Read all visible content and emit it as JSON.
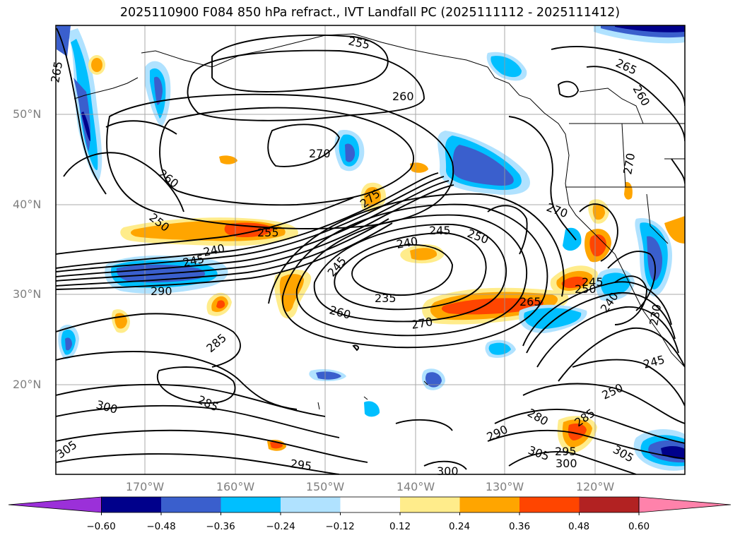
{
  "title": "2025110900 F084 850 hPa refract., IVT Landfall PC (2025111112 - 2025111412)",
  "lat_labels": [
    "50°N",
    "40°N",
    "30°N",
    "20°N"
  ],
  "lon_labels": [
    "170°W",
    "160°W",
    "150°W",
    "140°W",
    "130°W",
    "120°W"
  ],
  "contour_labels": [
    "255",
    "260",
    "265",
    "265",
    "260",
    "270",
    "270",
    "270",
    "260",
    "250",
    "275",
    "255",
    "240",
    "245",
    "245",
    "250",
    "240",
    "245",
    "290",
    "235",
    "260",
    "270",
    "265",
    "250",
    "245",
    "240",
    "230",
    "285",
    "285",
    "300",
    "305",
    "295",
    "300",
    "280",
    "290",
    "285",
    "305",
    "295",
    "300",
    "305",
    "250",
    "245"
  ],
  "colorbar": {
    "ticks": [
      "−0.60",
      "−0.48",
      "−0.36",
      "−0.24",
      "−0.12",
      "0.12",
      "0.24",
      "0.36",
      "0.48",
      "0.60"
    ],
    "colors": [
      "#9b30d9",
      "#00008b",
      "#3a5fcd",
      "#00bfff",
      "#b0e2ff",
      "#ffffff",
      "#ffec8b",
      "#ffa500",
      "#ff4500",
      "#b22222",
      "#ff82ab"
    ]
  }
}
